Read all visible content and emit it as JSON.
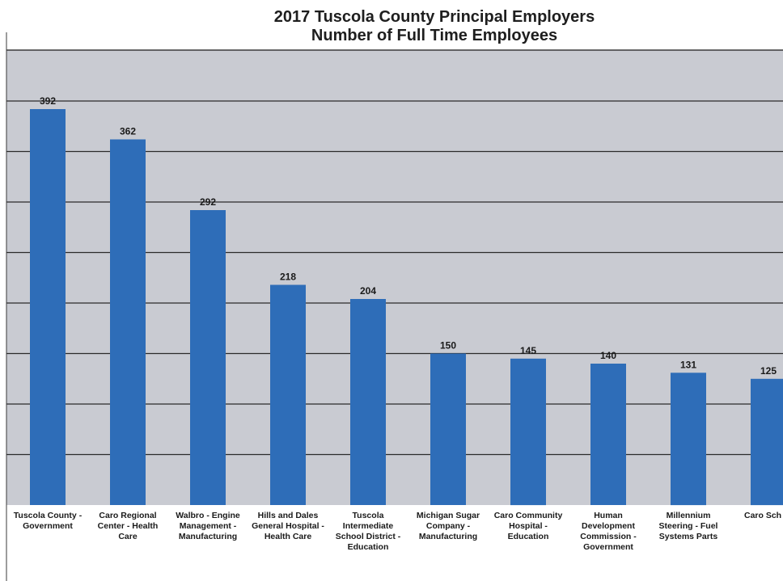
{
  "chart_data": {
    "type": "bar",
    "title": [
      "2017 Tuscola County Principal Employers",
      "Number of Full Time Employees"
    ],
    "categories": [
      "Tuscola County - Government",
      "Caro Regional Center - Health Care",
      "Walbro - Engine Management - Manufacturing",
      "Hills and Dales General Hospital - Health Care",
      "Tuscola Intermediate School District - Education",
      "Michigan Sugar Company - Manufacturing",
      "Caro Community Hospital - Education",
      "Human Development Commission - Government",
      "Millennium Steering - Fuel Systems Parts",
      "Caro Sch"
    ],
    "values": [
      392,
      362,
      292,
      218,
      204,
      150,
      145,
      140,
      131,
      125
    ],
    "data_labels": [
      "392",
      "362",
      "292",
      "218",
      "204",
      "150",
      "145",
      "140",
      "131",
      "125"
    ],
    "ylim": [
      0,
      450
    ],
    "grid": true,
    "bar_color": "#2e6db8",
    "plot_background": "#c9cbd2"
  }
}
